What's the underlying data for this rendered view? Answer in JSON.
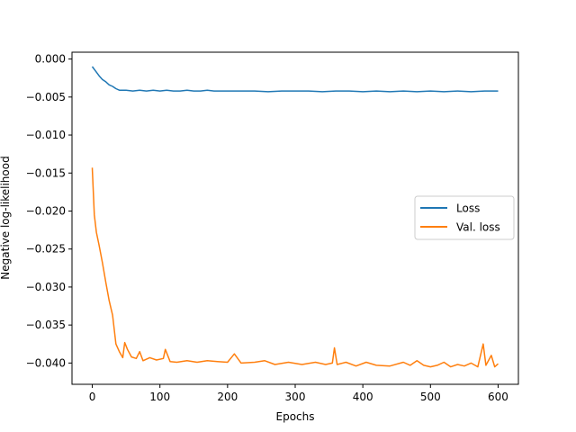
{
  "chart_data": {
    "type": "line",
    "title": "",
    "xlabel": "Epochs",
    "ylabel": "Negative log-likelihood",
    "xlim": [
      -30,
      630
    ],
    "ylim": [
      -0.0428,
      0.0009
    ],
    "xticks": [
      0,
      100,
      200,
      300,
      400,
      500,
      600
    ],
    "xtick_labels": [
      "0",
      "100",
      "200",
      "300",
      "400",
      "500",
      "600"
    ],
    "yticks": [
      0.0,
      -0.005,
      -0.01,
      -0.015,
      -0.02,
      -0.025,
      -0.03,
      -0.035,
      -0.04
    ],
    "ytick_labels": [
      "0.000",
      "−0.005",
      "−0.010",
      "−0.015",
      "−0.020",
      "−0.025",
      "−0.030",
      "−0.035",
      "−0.040"
    ],
    "grid": false,
    "legend_position": "center-right",
    "series": [
      {
        "name": "Loss",
        "color": "#1f77b4",
        "x": [
          0,
          5,
          10,
          15,
          20,
          25,
          30,
          35,
          40,
          50,
          60,
          70,
          80,
          90,
          100,
          110,
          120,
          130,
          140,
          150,
          160,
          170,
          180,
          190,
          200,
          220,
          240,
          260,
          280,
          300,
          320,
          340,
          360,
          380,
          400,
          420,
          440,
          460,
          480,
          500,
          520,
          540,
          560,
          580,
          600
        ],
        "y": [
          -0.001,
          -0.0016,
          -0.0022,
          -0.0027,
          -0.003,
          -0.0034,
          -0.0036,
          -0.0039,
          -0.0041,
          -0.0041,
          -0.0042,
          -0.0041,
          -0.0042,
          -0.0041,
          -0.0042,
          -0.0041,
          -0.0042,
          -0.0042,
          -0.0041,
          -0.0042,
          -0.0042,
          -0.0041,
          -0.0042,
          -0.0042,
          -0.0042,
          -0.0042,
          -0.0042,
          -0.0043,
          -0.0042,
          -0.0042,
          -0.0042,
          -0.0043,
          -0.0042,
          -0.0042,
          -0.0043,
          -0.0042,
          -0.0043,
          -0.0042,
          -0.0043,
          -0.0042,
          -0.0043,
          -0.0042,
          -0.0043,
          -0.0042,
          -0.0042
        ]
      },
      {
        "name": "Val. loss",
        "color": "#ff7f0e",
        "x": [
          0,
          3,
          6,
          10,
          15,
          20,
          25,
          30,
          35,
          40,
          45,
          48,
          52,
          58,
          65,
          70,
          75,
          85,
          95,
          105,
          108,
          115,
          125,
          140,
          155,
          170,
          185,
          200,
          210,
          220,
          240,
          255,
          270,
          290,
          310,
          330,
          345,
          355,
          358,
          362,
          375,
          390,
          405,
          420,
          440,
          460,
          470,
          480,
          490,
          500,
          510,
          520,
          530,
          540,
          550,
          560,
          570,
          578,
          582,
          590,
          595,
          600
        ],
        "y": [
          -0.0143,
          -0.0205,
          -0.0228,
          -0.0245,
          -0.0268,
          -0.0294,
          -0.0318,
          -0.0337,
          -0.0375,
          -0.0385,
          -0.0393,
          -0.0373,
          -0.0382,
          -0.0392,
          -0.0394,
          -0.0385,
          -0.0397,
          -0.0393,
          -0.0396,
          -0.0394,
          -0.0382,
          -0.0398,
          -0.0399,
          -0.0397,
          -0.0399,
          -0.0397,
          -0.0398,
          -0.0399,
          -0.0388,
          -0.04,
          -0.0399,
          -0.0397,
          -0.0402,
          -0.0399,
          -0.0402,
          -0.0399,
          -0.0402,
          -0.04,
          -0.038,
          -0.0402,
          -0.0399,
          -0.0404,
          -0.0399,
          -0.0403,
          -0.0404,
          -0.0399,
          -0.0403,
          -0.0397,
          -0.0403,
          -0.0405,
          -0.0403,
          -0.0399,
          -0.0405,
          -0.0402,
          -0.0404,
          -0.04,
          -0.0405,
          -0.0375,
          -0.0403,
          -0.039,
          -0.0405,
          -0.0401
        ]
      }
    ]
  }
}
